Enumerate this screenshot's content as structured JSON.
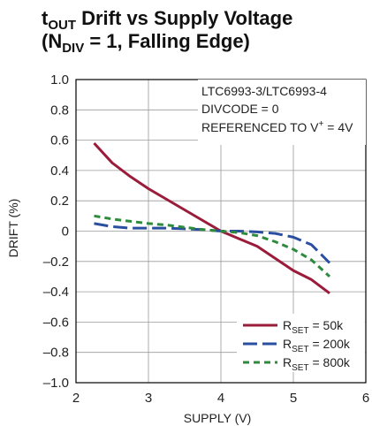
{
  "chart_data": {
    "type": "line",
    "title_line1": {
      "base": "t",
      "sub": "OUT",
      "rest": " Drift vs Supply Voltage"
    },
    "title_line2": {
      "pre": "(N",
      "sub": "DIV",
      "post": " = 1, Falling Edge)"
    },
    "xlabel": "SUPPLY (V)",
    "ylabel": "DRIFT (%)",
    "xlim": [
      2,
      6
    ],
    "ylim": [
      -1.0,
      1.0
    ],
    "x_ticks": [
      2,
      3,
      4,
      5,
      6
    ],
    "x_tick_labels": [
      "2",
      "3",
      "4",
      "5",
      "6"
    ],
    "y_ticks": [
      1.0,
      0.8,
      0.6,
      0.4,
      0.2,
      0,
      -0.2,
      -0.4,
      -0.6,
      -0.8,
      -1.0
    ],
    "y_tick_labels": [
      "1.0",
      "0.8",
      "0.6",
      "0.4",
      "0.2",
      "0",
      "–0.2",
      "–0.4",
      "–0.6",
      "–0.8",
      "–1.0"
    ],
    "grid": true,
    "annotations": {
      "line1": "LTC6993-3/LTC6993-4",
      "line2": "DIVCODE = 0",
      "line3_pre": "REFERENCED TO V",
      "line3_sup": "+",
      "line3_post": " = 4V"
    },
    "legend_position": "bottom-right",
    "series": [
      {
        "name": "50k",
        "legend_base": "R",
        "legend_sub": "SET",
        "legend_rest": " = 50k",
        "color": "#9b1c3a",
        "dash": "solid",
        "x": [
          2.25,
          2.5,
          2.75,
          3.0,
          3.25,
          3.5,
          3.75,
          4.0,
          4.25,
          4.5,
          4.75,
          5.0,
          5.25,
          5.5
        ],
        "y": [
          0.58,
          0.45,
          0.36,
          0.28,
          0.21,
          0.14,
          0.07,
          0.0,
          -0.05,
          -0.1,
          -0.18,
          -0.26,
          -0.32,
          -0.41
        ]
      },
      {
        "name": "200k",
        "legend_base": "R",
        "legend_sub": "SET",
        "legend_rest": " = 200k",
        "color": "#2a4fa0",
        "dash": "long",
        "x": [
          2.25,
          2.5,
          2.75,
          3.0,
          3.25,
          3.5,
          3.75,
          4.0,
          4.25,
          4.5,
          4.75,
          5.0,
          5.25,
          5.5
        ],
        "y": [
          0.05,
          0.03,
          0.02,
          0.02,
          0.02,
          0.015,
          0.01,
          0.0,
          0.0,
          -0.005,
          -0.015,
          -0.04,
          -0.09,
          -0.21
        ]
      },
      {
        "name": "800k",
        "legend_base": "R",
        "legend_sub": "SET",
        "legend_rest": " = 800k",
        "color": "#2e8a3c",
        "dash": "short",
        "x": [
          2.25,
          2.5,
          2.75,
          3.0,
          3.25,
          3.5,
          3.75,
          4.0,
          4.25,
          4.5,
          4.75,
          5.0,
          5.25,
          5.5
        ],
        "y": [
          0.1,
          0.08,
          0.065,
          0.05,
          0.04,
          0.025,
          0.01,
          0.0,
          -0.01,
          -0.03,
          -0.07,
          -0.12,
          -0.19,
          -0.3
        ]
      }
    ]
  }
}
